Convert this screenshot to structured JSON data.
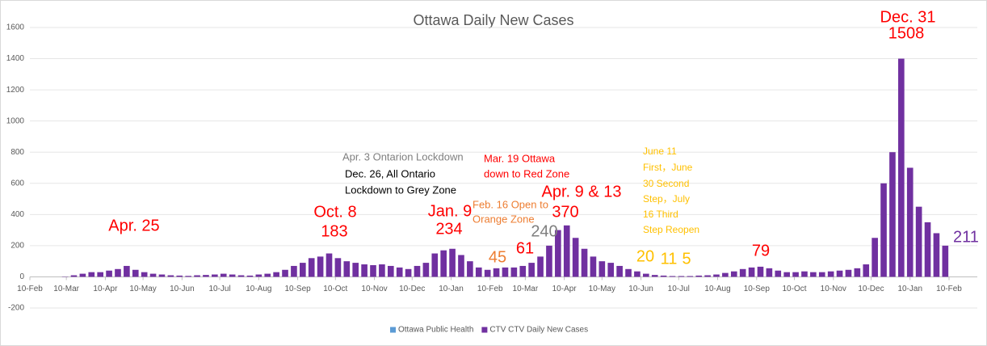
{
  "chart_data": {
    "type": "bar",
    "title": "Ottawa Daily New Cases",
    "xlim": [
      0,
      731
    ],
    "xticks": [
      {
        "value": 0,
        "label": "10-Feb"
      },
      {
        "value": 29,
        "label": "10-Mar"
      },
      {
        "value": 60,
        "label": "10-Apr"
      },
      {
        "value": 90,
        "label": "10-May"
      },
      {
        "value": 121,
        "label": "10-Jun"
      },
      {
        "value": 151,
        "label": "10-Jul"
      },
      {
        "value": 182,
        "label": "10-Aug"
      },
      {
        "value": 213,
        "label": "10-Sep"
      },
      {
        "value": 243,
        "label": "10-Oct"
      },
      {
        "value": 274,
        "label": "10-Nov"
      },
      {
        "value": 304,
        "label": "10-Dec"
      },
      {
        "value": 335,
        "label": "10-Jan"
      },
      {
        "value": 366,
        "label": "10-Feb"
      },
      {
        "value": 394,
        "label": "10-Mar"
      },
      {
        "value": 425,
        "label": "10-Apr"
      },
      {
        "value": 455,
        "label": "10-May"
      },
      {
        "value": 486,
        "label": "10-Jun"
      },
      {
        "value": 516,
        "label": "10-Jul"
      },
      {
        "value": 547,
        "label": "10-Aug"
      },
      {
        "value": 578,
        "label": "10-Sep"
      },
      {
        "value": 608,
        "label": "10-Oct"
      },
      {
        "value": 639,
        "label": "10-Nov"
      },
      {
        "value": 669,
        "label": "10-Dec"
      },
      {
        "value": 700,
        "label": "10-Jan"
      },
      {
        "value": 731,
        "label": "10-Feb"
      }
    ],
    "ylim": [
      -200,
      1600
    ],
    "yticks": [
      -200,
      0,
      200,
      400,
      600,
      800,
      1000,
      1200,
      1400,
      1600
    ],
    "grid": true,
    "x": [
      0,
      7,
      14,
      21,
      28,
      35,
      42,
      49,
      56,
      63,
      70,
      77,
      84,
      91,
      98,
      105,
      112,
      119,
      126,
      133,
      140,
      147,
      154,
      161,
      168,
      175,
      182,
      189,
      196,
      203,
      210,
      217,
      224,
      231,
      238,
      245,
      252,
      259,
      266,
      273,
      280,
      287,
      294,
      301,
      308,
      315,
      322,
      329,
      336,
      343,
      350,
      357,
      364,
      371,
      378,
      385,
      392,
      399,
      406,
      413,
      420,
      427,
      434,
      441,
      448,
      455,
      462,
      469,
      476,
      483,
      490,
      497,
      504,
      511,
      518,
      525,
      532,
      539,
      546,
      553,
      560,
      567,
      574,
      581,
      588,
      595,
      602,
      609,
      616,
      623,
      630,
      637,
      644,
      651,
      658,
      665,
      672,
      679,
      686,
      693,
      700,
      707,
      714,
      721,
      728
    ],
    "series": [
      {
        "name": "Ottawa Public Health",
        "color": "#5b9bd5",
        "values": [
          null,
          null,
          null,
          null,
          null,
          null,
          null,
          null,
          null,
          null,
          null,
          null,
          null,
          null,
          null,
          null,
          null,
          null,
          null,
          null,
          null,
          null,
          null,
          null,
          null,
          null,
          null,
          null,
          null,
          null,
          null,
          null,
          null,
          null,
          null,
          null,
          null,
          null,
          null,
          null,
          null,
          null,
          null,
          null,
          null,
          null,
          null,
          null,
          null,
          null,
          null,
          null,
          null,
          null,
          null,
          null,
          null,
          null,
          null,
          null,
          null,
          null,
          null,
          null,
          null,
          null,
          null,
          null,
          null,
          null,
          null,
          null,
          null,
          null,
          null,
          null,
          null,
          null,
          null,
          null,
          null,
          null,
          null,
          null,
          null,
          null,
          null,
          null,
          null,
          null,
          null,
          null,
          null,
          null,
          null,
          null,
          null,
          null,
          null,
          null,
          null,
          null,
          null,
          null,
          null
        ]
      },
      {
        "name": "CTV CTV Daily New Cases",
        "color": "#7030a0",
        "values": [
          0,
          0,
          0,
          0,
          2,
          10,
          20,
          30,
          30,
          40,
          50,
          70,
          45,
          30,
          20,
          15,
          10,
          8,
          6,
          10,
          12,
          15,
          20,
          15,
          10,
          8,
          15,
          20,
          30,
          45,
          70,
          90,
          120,
          130,
          150,
          120,
          100,
          90,
          80,
          75,
          80,
          70,
          60,
          50,
          70,
          90,
          150,
          170,
          180,
          140,
          100,
          60,
          45,
          55,
          60,
          60,
          70,
          90,
          130,
          200,
          300,
          330,
          250,
          180,
          130,
          100,
          90,
          70,
          50,
          35,
          20,
          12,
          8,
          5,
          5,
          5,
          8,
          10,
          15,
          25,
          35,
          50,
          60,
          65,
          55,
          40,
          30,
          30,
          35,
          30,
          30,
          35,
          40,
          45,
          55,
          80,
          250,
          600,
          800,
          1400,
          700,
          450,
          350,
          280,
          200
        ]
      }
    ],
    "legend": "bottom",
    "annotations": [
      {
        "text": "Apr. 25",
        "color": "#ff0000"
      },
      {
        "text": "Oct. 8",
        "color": "#ff0000"
      },
      {
        "text": "183",
        "color": "#ff0000"
      },
      {
        "text": "Jan. 9",
        "color": "#ff0000"
      },
      {
        "text": "234",
        "color": "#ff0000"
      },
      {
        "text": "Apr. 3 Ontarion Lockdown",
        "color": "#7f7f7f"
      },
      {
        "text": "Dec. 26, All Ontario",
        "color": "#000000"
      },
      {
        "text": "Lockdown to Grey Zone",
        "color": "#000000"
      },
      {
        "text": "Mar. 19 Ottawa",
        "color": "#ff0000"
      },
      {
        "text": "down to Red Zone",
        "color": "#ff0000"
      },
      {
        "text": "Feb. 16 Open to",
        "color": "#ed7d31"
      },
      {
        "text": "Orange Zone",
        "color": "#ed7d31"
      },
      {
        "text": "Apr. 9 & 13",
        "color": "#ff0000"
      },
      {
        "text": "370",
        "color": "#ff0000"
      },
      {
        "text": "June 11",
        "color": "#ffc000"
      },
      {
        "text": "First，June",
        "color": "#ffc000"
      },
      {
        "text": "30 Second",
        "color": "#ffc000"
      },
      {
        "text": "Step，July",
        "color": "#ffc000"
      },
      {
        "text": "16 Third",
        "color": "#ffc000"
      },
      {
        "text": "Step Reopen",
        "color": "#ffc000"
      },
      {
        "text": "45",
        "color": "#ed7d31"
      },
      {
        "text": "61",
        "color": "#ff0000"
      },
      {
        "text": "240",
        "color": "#7f7f7f"
      },
      {
        "text": "20",
        "color": "#ffc000"
      },
      {
        "text": "11",
        "color": "#ffc000"
      },
      {
        "text": "5",
        "color": "#ffc000"
      },
      {
        "text": "79",
        "color": "#ff0000"
      },
      {
        "text": "211",
        "color": "#7030a0"
      },
      {
        "text": "Dec. 31",
        "color": "#ff0000"
      },
      {
        "text": "1508",
        "color": "#ff0000"
      }
    ]
  }
}
